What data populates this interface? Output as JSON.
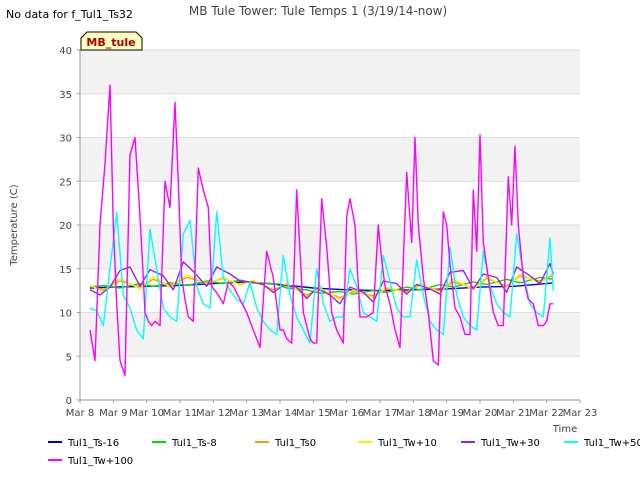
{
  "nodata_text": "No data for f_Tul1_Ts32",
  "site_label": "MB_tule",
  "chart_data": {
    "type": "line",
    "title": "MB Tule Tower: Tule Temps 1 (3/19/14-now)",
    "xlabel": "Time",
    "ylabel": "Temperature (C)",
    "xlim": [
      8,
      23
    ],
    "ylim": [
      0,
      40
    ],
    "xticks": [
      8,
      9,
      10,
      11,
      12,
      13,
      14,
      15,
      16,
      17,
      18,
      19,
      20,
      21,
      22,
      23
    ],
    "xtick_labels": [
      "Mar 8",
      "Mar 9",
      "Mar 10",
      "Mar 11",
      "Mar 12",
      "Mar 13",
      "Mar 14",
      "Mar 15",
      "Mar 16",
      "Mar 17",
      "Mar 18",
      "Mar 19",
      "Mar 20",
      "Mar 21",
      "Mar 22",
      "Mar 23"
    ],
    "yticks": [
      0,
      5,
      10,
      15,
      20,
      25,
      30,
      35,
      40
    ],
    "grid": true,
    "legend_position": "bottom",
    "series": [
      {
        "name": "Tul1_Ts-16",
        "color": "#0000cc",
        "x": [
          8.3,
          9,
          10,
          11,
          12,
          13,
          14,
          15,
          15.5,
          16,
          17,
          18,
          19,
          20,
          21,
          22,
          22.2
        ],
        "values": [
          12.8,
          12.9,
          13.0,
          13.1,
          13.3,
          13.5,
          13.2,
          12.8,
          12.7,
          12.6,
          12.5,
          12.6,
          12.7,
          12.9,
          13.0,
          13.3,
          13.4
        ]
      },
      {
        "name": "Tul1_Ts-8",
        "color": "#00dd00",
        "x": [
          8.3,
          8.7,
          9.2,
          9.8,
          10.2,
          10.7,
          11.2,
          11.8,
          12.3,
          12.8,
          13.2,
          13.8,
          14.2,
          14.8,
          15.2,
          15.8,
          16.2,
          16.8,
          17.2,
          17.8,
          18.2,
          18.8,
          19.2,
          19.8,
          20.2,
          20.8,
          21.2,
          21.8,
          22.2
        ],
        "values": [
          12.9,
          13.1,
          12.8,
          13.3,
          13.0,
          13.4,
          13.1,
          13.6,
          13.3,
          13.7,
          13.4,
          13.3,
          12.8,
          12.6,
          12.2,
          12.4,
          12.1,
          12.5,
          12.3,
          12.9,
          12.6,
          13.2,
          12.9,
          13.5,
          13.2,
          13.8,
          13.4,
          14.0,
          13.8
        ]
      },
      {
        "name": "Tul1_Ts0",
        "color": "#ff9900",
        "x": [
          8.3,
          8.7,
          9.2,
          9.8,
          10.2,
          10.7,
          11.2,
          11.8,
          12.3,
          12.8,
          13.2,
          13.8,
          14.2,
          14.8,
          15.2,
          15.8,
          16.2,
          16.8,
          17.2,
          17.8,
          18.2,
          18.8,
          19.2,
          19.8,
          20.2,
          20.8,
          21.2,
          21.8,
          22.2
        ],
        "values": [
          13.0,
          12.6,
          13.6,
          12.9,
          13.8,
          13.1,
          14.0,
          13.4,
          13.9,
          13.2,
          13.6,
          12.6,
          13.2,
          12.0,
          12.6,
          11.7,
          12.4,
          11.9,
          12.7,
          12.4,
          13.1,
          12.5,
          13.5,
          12.8,
          13.9,
          13.0,
          14.2,
          13.6,
          14.3
        ]
      },
      {
        "name": "Tul1_Tw+10",
        "color": "#ffee00",
        "x": [
          8.3,
          8.7,
          9.2,
          9.8,
          10.2,
          10.7,
          11.2,
          11.8,
          12.3,
          12.8,
          13.2,
          13.8,
          14.2,
          14.8,
          15.2,
          15.8,
          16.2,
          16.8,
          17.2,
          17.8,
          18.2,
          18.8,
          19.2,
          19.8,
          20.2,
          20.8,
          21.2,
          21.8,
          22.2
        ],
        "values": [
          13.1,
          12.4,
          13.9,
          12.7,
          14.1,
          12.9,
          14.3,
          13.3,
          14.0,
          13.1,
          13.7,
          12.4,
          13.4,
          11.8,
          12.8,
          11.5,
          12.6,
          11.7,
          12.9,
          12.2,
          13.3,
          12.3,
          13.8,
          12.6,
          14.1,
          12.8,
          14.4,
          13.4,
          14.5
        ]
      },
      {
        "name": "Tul1_Tw+30",
        "color": "#9922ee",
        "x": [
          8.3,
          8.6,
          8.9,
          9.2,
          9.5,
          9.8,
          10.1,
          10.5,
          10.8,
          11.1,
          11.4,
          11.8,
          12.1,
          12.5,
          12.8,
          13.1,
          13.5,
          13.8,
          14.1,
          14.5,
          14.8,
          15.1,
          15.5,
          15.8,
          16.1,
          16.5,
          16.8,
          17.1,
          17.5,
          17.8,
          18.1,
          18.5,
          18.8,
          19.1,
          19.5,
          19.8,
          20.1,
          20.5,
          20.8,
          21.1,
          21.5,
          21.8,
          22.1,
          22.2
        ],
        "values": [
          12.6,
          12.0,
          12.9,
          14.8,
          15.2,
          13.0,
          14.9,
          14.2,
          12.6,
          15.8,
          14.7,
          13.0,
          15.2,
          14.4,
          13.6,
          13.5,
          13.2,
          12.3,
          13.1,
          12.9,
          11.6,
          12.8,
          12.0,
          11.0,
          12.9,
          12.3,
          11.2,
          13.6,
          13.3,
          12.1,
          13.2,
          12.7,
          12.1,
          14.6,
          14.8,
          12.7,
          14.4,
          14.0,
          12.3,
          15.2,
          14.2,
          13.3,
          15.6,
          14.4
        ]
      },
      {
        "name": "Tul1_Tw+50",
        "color": "#00ffff",
        "x": [
          8.3,
          8.5,
          8.7,
          8.9,
          9.1,
          9.3,
          9.5,
          9.7,
          9.9,
          10.1,
          10.3,
          10.5,
          10.7,
          10.9,
          11.1,
          11.3,
          11.5,
          11.7,
          11.9,
          12.1,
          12.3,
          12.5,
          12.7,
          12.9,
          13.1,
          13.3,
          13.5,
          13.7,
          13.9,
          14.1,
          14.3,
          14.5,
          14.7,
          14.9,
          15.1,
          15.3,
          15.5,
          15.7,
          15.9,
          16.1,
          16.3,
          16.5,
          16.7,
          16.9,
          17.1,
          17.3,
          17.5,
          17.7,
          17.9,
          18.1,
          18.3,
          18.5,
          18.7,
          18.9,
          19.1,
          19.3,
          19.5,
          19.7,
          19.9,
          20.1,
          20.3,
          20.5,
          20.7,
          20.9,
          21.1,
          21.3,
          21.5,
          21.7,
          21.9,
          22.1,
          22.2
        ],
        "values": [
          10.5,
          10.2,
          8.5,
          15.0,
          21.5,
          12.0,
          10.5,
          8.0,
          7.0,
          19.5,
          15.0,
          10.5,
          9.5,
          9.0,
          19.0,
          20.5,
          13.0,
          11.0,
          10.5,
          21.5,
          14.0,
          12.5,
          11.5,
          11.0,
          13.5,
          10.5,
          9.0,
          8.0,
          7.5,
          16.5,
          12.0,
          9.5,
          8.0,
          6.5,
          15.0,
          11.0,
          9.0,
          9.5,
          9.5,
          15.0,
          13.0,
          10.0,
          9.5,
          9.0,
          16.5,
          13.5,
          10.5,
          9.5,
          9.5,
          16.0,
          12.0,
          9.0,
          8.0,
          7.5,
          17.5,
          12.0,
          9.5,
          8.5,
          8.0,
          17.0,
          13.0,
          11.0,
          10.0,
          9.5,
          19.0,
          14.5,
          11.0,
          10.0,
          9.5,
          18.5,
          12.5
        ]
      },
      {
        "name": "Tul1_Tw+100",
        "color": "#ff00ff",
        "x": [
          8.3,
          8.45,
          8.6,
          8.75,
          8.9,
          9.0,
          9.1,
          9.2,
          9.35,
          9.5,
          9.65,
          9.8,
          9.9,
          9.95,
          10.05,
          10.15,
          10.25,
          10.4,
          10.55,
          10.7,
          10.85,
          10.95,
          11.05,
          11.15,
          11.25,
          11.4,
          11.55,
          11.7,
          11.85,
          11.95,
          12.05,
          12.15,
          12.3,
          12.45,
          12.6,
          12.8,
          13.0,
          13.2,
          13.4,
          13.6,
          13.8,
          14.0,
          14.1,
          14.2,
          14.35,
          14.5,
          14.7,
          14.9,
          15.0,
          15.1,
          15.25,
          15.4,
          15.55,
          15.7,
          15.9,
          16.0,
          16.1,
          16.25,
          16.4,
          16.6,
          16.8,
          16.95,
          17.05,
          17.15,
          17.3,
          17.45,
          17.6,
          17.8,
          17.95,
          18.05,
          18.15,
          18.3,
          18.45,
          18.6,
          18.75,
          18.9,
          19.0,
          19.1,
          19.25,
          19.4,
          19.55,
          19.7,
          19.8,
          19.9,
          20.0,
          20.1,
          20.25,
          20.4,
          20.55,
          20.7,
          20.85,
          20.95,
          21.05,
          21.15,
          21.3,
          21.45,
          21.6,
          21.75,
          21.9,
          22.0,
          22.1,
          22.2
        ],
        "values": [
          8.0,
          4.5,
          20.0,
          27.0,
          36.0,
          20.0,
          11.0,
          4.5,
          2.8,
          28.0,
          30.0,
          21.0,
          14.0,
          10.0,
          9.0,
          8.5,
          9.0,
          8.5,
          25.0,
          22.0,
          34.0,
          25.0,
          14.0,
          11.5,
          9.5,
          9.0,
          26.5,
          24.0,
          22.0,
          13.0,
          12.5,
          12.0,
          11.0,
          13.5,
          13.0,
          11.5,
          10.0,
          8.0,
          6.0,
          17.0,
          14.0,
          8.0,
          8.0,
          7.0,
          6.5,
          24.0,
          10.0,
          7.0,
          6.5,
          6.5,
          23.0,
          17.5,
          10.0,
          8.0,
          6.5,
          21.0,
          23.0,
          20.0,
          9.5,
          9.5,
          10.0,
          20.0,
          16.0,
          13.0,
          11.0,
          8.0,
          6.0,
          26.0,
          18.0,
          30.0,
          20.0,
          14.0,
          10.0,
          4.5,
          4.0,
          21.5,
          20.0,
          15.5,
          10.5,
          9.5,
          7.5,
          7.5,
          24.0,
          17.0,
          30.3,
          18.0,
          14.0,
          10.0,
          8.5,
          8.5,
          25.5,
          20.0,
          29.0,
          20.0,
          14.0,
          11.5,
          11.0,
          8.5,
          8.5,
          9.0,
          11.0,
          11.0
        ]
      }
    ]
  }
}
